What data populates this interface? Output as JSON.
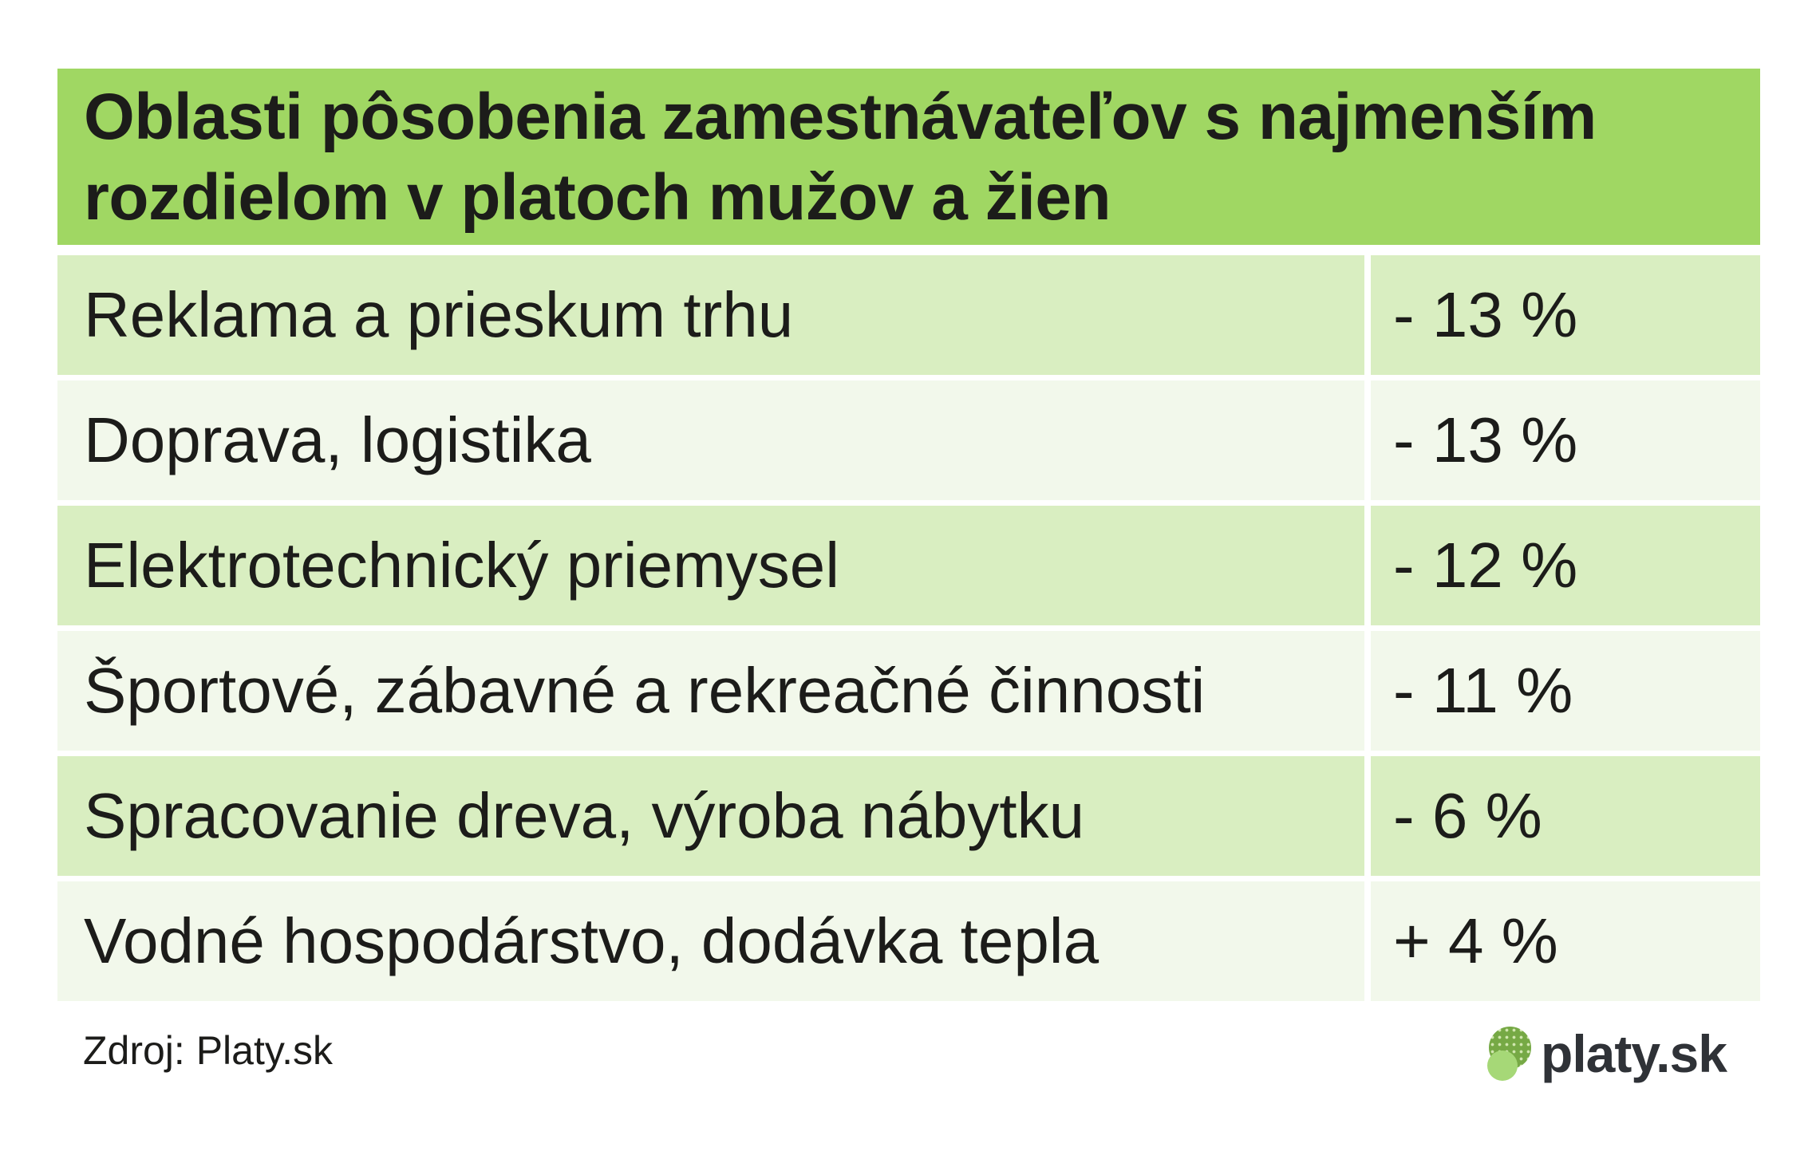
{
  "header": {
    "title": "Oblasti pôsobenia zamestnávateľov s najmenším rozdielom v platoch mužov a žien",
    "title_line1": "Oblasti pôsobenia zamestnávateľov s najmenším",
    "title_line2": "rozdielom v platoch mužov a žien"
  },
  "rows": [
    {
      "label": "Reklama a prieskum trhu",
      "value": "- 13 %"
    },
    {
      "label": "Doprava, logistika",
      "value": "- 13 %"
    },
    {
      "label": "Elektrotechnický priemysel",
      "value": "- 12 %"
    },
    {
      "label": "Športové, zábavné a rekreačné činnosti",
      "value": "- 11 %"
    },
    {
      "label": "Spracovanie dreva, výroba nábytku",
      "value": "- 6 %"
    },
    {
      "label": "Vodné hospodárstvo, dodávka tepla",
      "value": "+ 4 %"
    }
  ],
  "footer": {
    "source": "Zdroj: Platy.sk",
    "logo_text": "platy.sk"
  },
  "colors": {
    "header_green": "#a0d763",
    "row_green": "#d9eec1",
    "row_offwhite": "#f2f8eb",
    "text_dark": "#1c1c1a",
    "logo_dark_green": "#76a945",
    "logo_light_green": "#a6d877",
    "logo_text_color": "#2f3237"
  },
  "chart_data": {
    "type": "table",
    "title": "Oblasti pôsobenia zamestnávateľov s najmenším rozdielom v platoch mužov a žien",
    "categories": [
      "Reklama a prieskum trhu",
      "Doprava, logistika",
      "Elektrotechnický priemysel",
      "Športové, zábavné a rekreačné činnosti",
      "Spracovanie dreva, výroba nábytku",
      "Vodné hospodárstvo, dodávka tepla"
    ],
    "values_percent": [
      -13,
      -13,
      -12,
      -11,
      -6,
      4
    ],
    "value_labels": [
      "- 13 %",
      "- 13 %",
      "- 12 %",
      "- 11 %",
      "- 6 %",
      "+ 4 %"
    ],
    "source": "Zdroj: Platy.sk"
  }
}
